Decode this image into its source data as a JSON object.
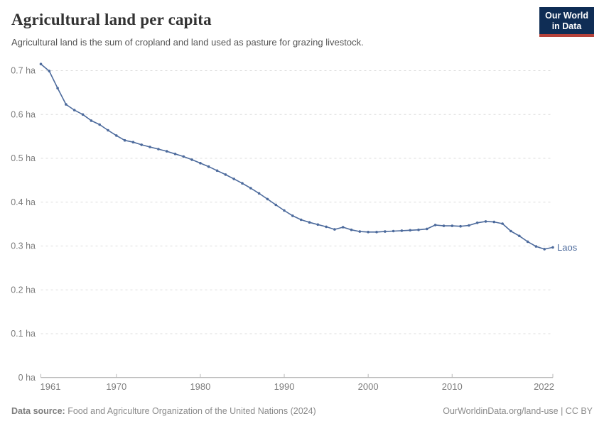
{
  "header": {
    "title": "Agricultural land per capita",
    "subtitle": "Agricultural land is the sum of cropland and land used as pasture for grazing livestock.",
    "logo": {
      "line1": "Our World",
      "line2": "in Data",
      "bg_color": "#0f2d55",
      "accent_color": "#b6423a"
    }
  },
  "chart_data": {
    "type": "line",
    "title": "Agricultural land per capita",
    "unit": "ha",
    "grid": "horizontal-dashed",
    "legend_position": "end-of-line-label",
    "ylim": [
      0,
      0.7
    ],
    "xlim": [
      1961,
      2022
    ],
    "yticks": [
      {
        "value": 0,
        "label": "0 ha"
      },
      {
        "value": 0.1,
        "label": "0.1 ha"
      },
      {
        "value": 0.2,
        "label": "0.2 ha"
      },
      {
        "value": 0.3,
        "label": "0.3 ha"
      },
      {
        "value": 0.4,
        "label": "0.4 ha"
      },
      {
        "value": 0.5,
        "label": "0.5 ha"
      },
      {
        "value": 0.6,
        "label": "0.6 ha"
      },
      {
        "value": 0.7,
        "label": "0.7 ha"
      }
    ],
    "xticks": [
      {
        "value": 1961,
        "label": "1961"
      },
      {
        "value": 1970,
        "label": "1970"
      },
      {
        "value": 1980,
        "label": "1980"
      },
      {
        "value": 1990,
        "label": "1990"
      },
      {
        "value": 2000,
        "label": "2000"
      },
      {
        "value": 2010,
        "label": "2010"
      },
      {
        "value": 2022,
        "label": "2022"
      }
    ],
    "x": [
      1961,
      1962,
      1963,
      1964,
      1965,
      1966,
      1967,
      1968,
      1969,
      1970,
      1971,
      1972,
      1973,
      1974,
      1975,
      1976,
      1977,
      1978,
      1979,
      1980,
      1981,
      1982,
      1983,
      1984,
      1985,
      1986,
      1987,
      1988,
      1989,
      1990,
      1991,
      1992,
      1993,
      1994,
      1995,
      1996,
      1997,
      1998,
      1999,
      2000,
      2001,
      2002,
      2003,
      2004,
      2005,
      2006,
      2007,
      2008,
      2009,
      2010,
      2011,
      2012,
      2013,
      2014,
      2015,
      2016,
      2017,
      2018,
      2019,
      2020,
      2021,
      2022
    ],
    "series": [
      {
        "name": "Laos",
        "color": "#4C6A9C",
        "values": [
          0.715,
          0.699,
          0.66,
          0.623,
          0.61,
          0.6,
          0.586,
          0.577,
          0.564,
          0.552,
          0.541,
          0.537,
          0.531,
          0.526,
          0.521,
          0.516,
          0.51,
          0.504,
          0.497,
          0.489,
          0.481,
          0.472,
          0.463,
          0.453,
          0.443,
          0.432,
          0.42,
          0.407,
          0.394,
          0.381,
          0.369,
          0.36,
          0.354,
          0.349,
          0.344,
          0.338,
          0.343,
          0.337,
          0.333,
          0.332,
          0.332,
          0.333,
          0.334,
          0.335,
          0.336,
          0.337,
          0.339,
          0.348,
          0.346,
          0.346,
          0.345,
          0.347,
          0.353,
          0.356,
          0.355,
          0.351,
          0.334,
          0.323,
          0.31,
          0.299,
          0.293,
          0.297
        ]
      }
    ],
    "colors": {
      "gridline": "#dcdcdc",
      "axis_line": "#a3a3a3",
      "tick_mark": "#b8b8b8",
      "tick_label": "#7d7d7d"
    }
  },
  "footer": {
    "source_label": "Data source:",
    "source_text": " Food and Agriculture Organization of the United Nations (2024)",
    "credit": "OurWorldinData.org/land-use | CC BY"
  }
}
